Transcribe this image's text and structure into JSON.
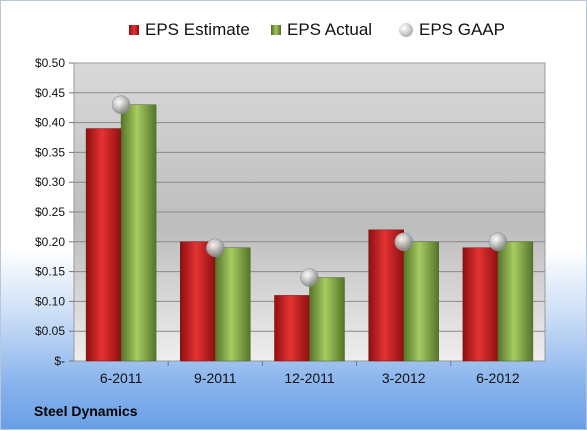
{
  "company": "Steel Dynamics",
  "chart_data": {
    "type": "bar",
    "categories": [
      "6-2011",
      "9-2011",
      "12-2011",
      "3-2012",
      "6-2012"
    ],
    "series": [
      {
        "name": "EPS Estimate",
        "values": [
          0.39,
          0.2,
          0.11,
          0.22,
          0.19
        ],
        "color": "#d42020"
      },
      {
        "name": "EPS Actual",
        "values": [
          0.43,
          0.19,
          0.14,
          0.2,
          0.2
        ],
        "color": "#8fb549"
      },
      {
        "name": "EPS GAAP",
        "values": [
          0.43,
          0.19,
          0.14,
          0.2,
          0.2
        ],
        "marker": "sphere",
        "color": "#b0b0b0"
      }
    ],
    "yticks": [
      "$-",
      "$0.05",
      "$0.10",
      "$0.15",
      "$0.20",
      "$0.25",
      "$0.30",
      "$0.35",
      "$0.40",
      "$0.45",
      "$0.50"
    ],
    "ylim": [
      0,
      0.5
    ],
    "grid": true,
    "legend": "top"
  }
}
